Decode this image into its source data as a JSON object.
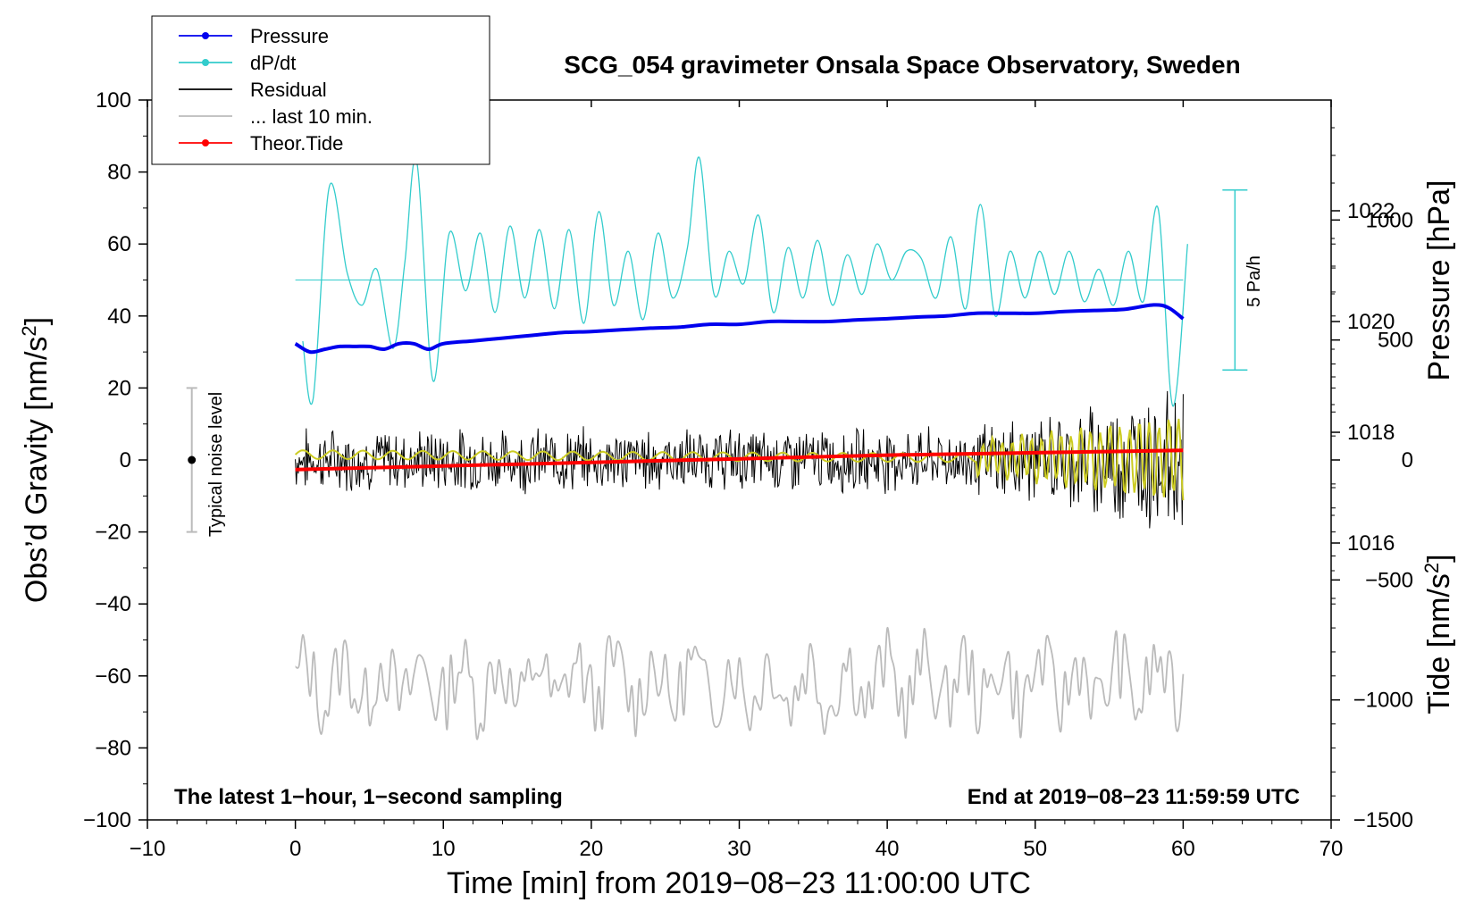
{
  "chart_data": {
    "type": "line",
    "title": "SCG_054 gravimeter Onsala Space Observatory, Sweden",
    "xlabel": "Time [min] from 2019−08−23 11:00:00 UTC",
    "ylabel_left": "Obs’d Gravity [nm/s",
    "ylabel_left_sup": "2",
    "ylabel_left_close": "]",
    "ylabel_right_pressure": "Pressure [hPa]",
    "ylabel_right_tide": "Tide [nm/s",
    "ylabel_right_tide_sup": "2",
    "ylabel_right_tide_close": "]",
    "xlim": [
      -10,
      70
    ],
    "ylim": [
      -100,
      100
    ],
    "pressure_lim": [
      1011,
      1024
    ],
    "tide_lim": [
      -1500,
      1500
    ],
    "x_ticks": [
      "−10",
      "0",
      "10",
      "20",
      "30",
      "40",
      "50",
      "60",
      "70"
    ],
    "x_tick_values": [
      -10,
      0,
      10,
      20,
      30,
      40,
      50,
      60,
      70
    ],
    "y_ticks": [
      "100",
      "80",
      "60",
      "40",
      "20",
      "0",
      "−20",
      "−40",
      "−60",
      "−80",
      "−100"
    ],
    "y_tick_values": [
      100,
      80,
      60,
      40,
      20,
      0,
      -20,
      -40,
      -60,
      -80,
      -100
    ],
    "pressure_ticks": [
      "1022",
      "1020",
      "1018",
      "1016"
    ],
    "pressure_tick_values": [
      1022,
      1020,
      1018,
      1016
    ],
    "tide_ticks": [
      "1000",
      "500",
      "0",
      "−500",
      "−1000",
      "−1500"
    ],
    "tide_tick_values": [
      1000,
      500,
      0,
      -500,
      -1000,
      -1500
    ],
    "legend": [
      {
        "label": "Pressure",
        "color": "#0000ee",
        "marker": true
      },
      {
        "label": "dP/dt",
        "color": "#33cccc",
        "marker": true
      },
      {
        "label": "Residual",
        "color": "#000000",
        "marker": false
      },
      {
        "label": "... last 10 min.",
        "color": "#bbbbbb",
        "marker": false
      },
      {
        "label": "Theor.Tide",
        "color": "#ff0000",
        "marker": true
      }
    ],
    "footer_left": "The latest 1−hour, 1−second sampling",
    "footer_right": "End at 2019−08−23 11:59:59 UTC",
    "noise_label": "Typical noise level",
    "noise_bar": {
      "x": -7,
      "center": 0,
      "half_range": 20
    },
    "rate_label": "5 Pa/h",
    "rate_bar": {
      "x": 63.5,
      "top": 75,
      "bottom": 25
    },
    "dpdt_zero_level": 50,
    "series": [
      {
        "name": "Pressure",
        "color": "#0000ee",
        "axis": "pressure",
        "x": [
          0,
          1,
          2,
          3,
          4,
          5,
          6,
          7,
          8,
          9,
          10,
          12,
          14,
          16,
          18,
          20,
          22,
          24,
          26,
          28,
          30,
          32,
          34,
          36,
          38,
          40,
          42,
          44,
          46,
          48,
          50,
          52,
          54,
          56,
          58,
          59,
          60
        ],
        "values": [
          1019.6,
          1019.45,
          1019.5,
          1019.55,
          1019.55,
          1019.55,
          1019.5,
          1019.6,
          1019.6,
          1019.5,
          1019.6,
          1019.65,
          1019.7,
          1019.75,
          1019.8,
          1019.82,
          1019.85,
          1019.88,
          1019.9,
          1019.95,
          1019.95,
          1020.0,
          1020.0,
          1020.0,
          1020.03,
          1020.05,
          1020.08,
          1020.1,
          1020.15,
          1020.15,
          1020.15,
          1020.18,
          1020.2,
          1020.22,
          1020.3,
          1020.25,
          1020.05
        ]
      },
      {
        "name": "dP/dt",
        "color": "#33cccc",
        "axis": "left",
        "x": [
          0.5,
          1.2,
          2.3,
          3.5,
          4.5,
          5.5,
          6.6,
          7.4,
          8.2,
          9.3,
          10.4,
          11.5,
          12.5,
          13.5,
          14.5,
          15.5,
          16.5,
          17.5,
          18.5,
          19.5,
          20.5,
          21.5,
          22.5,
          23.5,
          24.5,
          25.5,
          26.5,
          27.3,
          28.3,
          29.3,
          30.3,
          31.3,
          32.3,
          33.3,
          34.3,
          35.3,
          36.3,
          37.3,
          38.3,
          39.3,
          40.3,
          41.3,
          42.3,
          43.3,
          44.3,
          45.3,
          46.3,
          47.3,
          48.3,
          49.3,
          50.3,
          51.3,
          52.3,
          53.3,
          54.3,
          55.3,
          56.3,
          57.3,
          58.3,
          59.3,
          60.3
        ],
        "values": [
          33,
          17,
          76,
          52,
          43,
          53,
          31,
          55,
          83,
          22,
          63,
          47,
          63,
          41,
          65,
          45,
          64,
          42,
          64,
          38,
          69,
          43,
          58,
          39,
          63,
          45,
          59,
          84,
          46,
          58,
          49,
          68,
          41,
          59,
          45,
          61,
          43,
          57,
          46,
          60,
          50,
          58,
          56,
          45,
          62,
          42,
          71,
          40,
          58,
          45,
          58,
          46,
          58,
          44,
          53,
          43,
          58,
          44,
          70,
          15,
          60
        ]
      },
      {
        "name": "Theor.Tide",
        "color": "#ff0000",
        "axis": "tide",
        "x": [
          0,
          10,
          20,
          30,
          40,
          50,
          60
        ],
        "values": [
          -40,
          -25,
          -10,
          5,
          20,
          30,
          40
        ]
      }
    ]
  }
}
